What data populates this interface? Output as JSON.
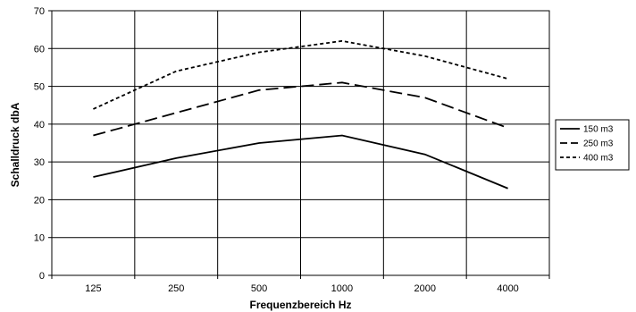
{
  "chart_data": {
    "type": "line",
    "title": "",
    "xlabel": "Frequenzbereich Hz",
    "ylabel": "Schalldruck dbA",
    "categories": [
      "125",
      "250",
      "500",
      "1000",
      "2000",
      "4000"
    ],
    "ylim": [
      0,
      70
    ],
    "yticks": [
      0,
      10,
      20,
      30,
      40,
      50,
      60,
      70
    ],
    "grid": true,
    "legend_position": "right",
    "series": [
      {
        "name": "150 m3",
        "values": [
          26,
          31,
          35,
          37,
          32,
          23
        ],
        "dash": "solid",
        "color": "#000000"
      },
      {
        "name": "250 m3",
        "values": [
          37,
          43,
          49,
          51,
          47,
          39
        ],
        "dash": "long-dash",
        "color": "#000000"
      },
      {
        "name": "400 m3",
        "values": [
          44,
          54,
          59,
          62,
          58,
          52
        ],
        "dash": "short-dash",
        "color": "#000000"
      }
    ]
  }
}
